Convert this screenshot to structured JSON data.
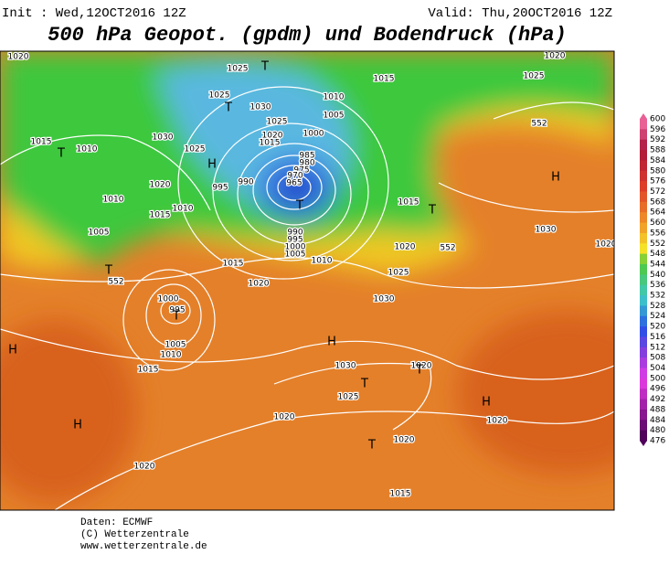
{
  "header": {
    "init": "Init : Wed,12OCT2016 12Z",
    "valid": "Valid: Thu,20OCT2016 12Z",
    "title": "500 hPa Geopot. (gpdm) und Bodendruck (hPa)"
  },
  "colorbar": {
    "labels": [
      600,
      596,
      592,
      588,
      584,
      580,
      576,
      572,
      568,
      564,
      560,
      556,
      552,
      548,
      544,
      540,
      536,
      532,
      528,
      524,
      520,
      516,
      512,
      508,
      504,
      500,
      496,
      492,
      488,
      484,
      480,
      476
    ]
  },
  "map": {
    "isobar_labels": [
      "1020",
      "1025",
      "1025",
      "1030",
      "1015",
      "1010",
      "1030",
      "1025",
      "1020",
      "1015",
      "1025",
      "1000",
      "1010",
      "1005",
      "1015",
      "985",
      "980",
      "975",
      "970",
      "965",
      "995",
      "990",
      "1020",
      "1010",
      "1015",
      "1010",
      "1005",
      "1015",
      "1020",
      "1025",
      "1030",
      "1030",
      "1025",
      "1020",
      "1000",
      "995",
      "1005",
      "1010",
      "1015",
      "1015",
      "1020",
      "1010",
      "990",
      "995",
      "1000",
      "1005",
      "1030",
      "1025",
      "1020",
      "1020",
      "1020",
      "1020",
      "1015",
      "1020",
      "1020",
      "552",
      "552",
      "552"
    ],
    "centers": [
      "T",
      "T",
      "H",
      "T",
      "H",
      "T",
      "T",
      "T",
      "H",
      "H",
      "T",
      "T",
      "H",
      "H",
      "T",
      "T"
    ]
  },
  "footer": {
    "lines": [
      "Daten: ECMWF",
      "(C) Wetterzentrale",
      "www.wetterzentrale.de"
    ]
  }
}
